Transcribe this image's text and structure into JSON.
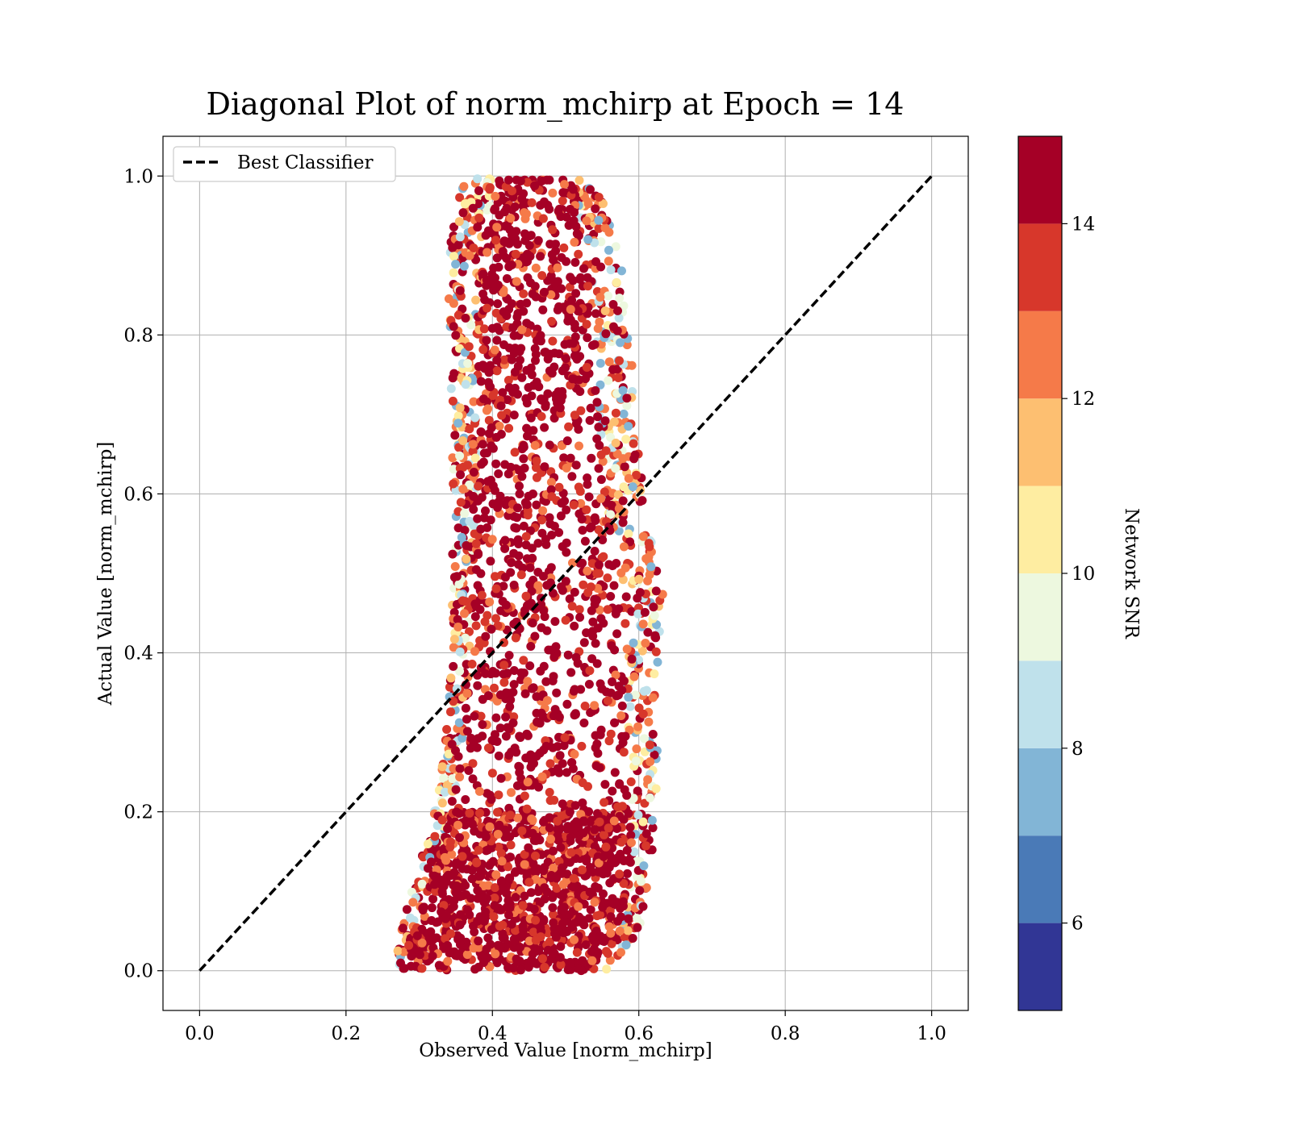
{
  "chart_data": {
    "type": "scatter",
    "title": "Diagonal Plot of norm_mchirp at Epoch = 14",
    "xlabel": "Observed Value [norm_mchirp]",
    "ylabel": "Actual Value [norm_mchirp]",
    "xlim": [
      -0.05,
      1.05
    ],
    "ylim": [
      -0.05,
      1.05
    ],
    "xticks": [
      "0.0",
      "0.2",
      "0.4",
      "0.6",
      "0.8",
      "1.0"
    ],
    "yticks": [
      "0.0",
      "0.2",
      "0.4",
      "0.6",
      "0.8",
      "1.0"
    ],
    "xtick_values": [
      0.0,
      0.2,
      0.4,
      0.6,
      0.8,
      1.0
    ],
    "ytick_values": [
      0.0,
      0.2,
      0.4,
      0.6,
      0.8,
      1.0
    ],
    "grid": true,
    "legend": {
      "placement": "upper-left",
      "entries": [
        "Best Classifier"
      ]
    },
    "reference_line": {
      "name": "Best Classifier",
      "x": [
        0.0,
        1.0
      ],
      "y": [
        0.0,
        1.0
      ],
      "style": "dashed",
      "color": "#000000"
    },
    "colorbar": {
      "label": "Network SNR",
      "range": [
        5,
        15
      ],
      "ticks": [
        "6",
        "8",
        "10",
        "12",
        "14"
      ],
      "tick_values": [
        6,
        8,
        10,
        12,
        14
      ],
      "bins": [
        {
          "from": 5,
          "to": 6,
          "color": "#313695"
        },
        {
          "from": 6,
          "to": 7,
          "color": "#4a7ab7"
        },
        {
          "from": 7,
          "to": 8,
          "color": "#82b5d6"
        },
        {
          "from": 8,
          "to": 9,
          "color": "#bfe1eb"
        },
        {
          "from": 9,
          "to": 10,
          "color": "#edf8df"
        },
        {
          "from": 10,
          "to": 11,
          "color": "#feeda1"
        },
        {
          "from": 11,
          "to": 12,
          "color": "#fdbf71"
        },
        {
          "from": 12,
          "to": 13,
          "color": "#f57a49"
        },
        {
          "from": 13,
          "to": 14,
          "color": "#d7372b"
        },
        {
          "from": 14,
          "to": 15,
          "color": "#a50026"
        }
      ]
    },
    "point_cloud_envelope": [
      {
        "y": 0.0,
        "x_min": 0.265,
        "x_max": 0.555
      },
      {
        "y": 0.05,
        "x_min": 0.275,
        "x_max": 0.6
      },
      {
        "y": 0.1,
        "x_min": 0.29,
        "x_max": 0.615
      },
      {
        "y": 0.15,
        "x_min": 0.305,
        "x_max": 0.62
      },
      {
        "y": 0.2,
        "x_min": 0.32,
        "x_max": 0.625
      },
      {
        "y": 0.25,
        "x_min": 0.33,
        "x_max": 0.625
      },
      {
        "y": 0.3,
        "x_min": 0.335,
        "x_max": 0.625
      },
      {
        "y": 0.35,
        "x_min": 0.34,
        "x_max": 0.625
      },
      {
        "y": 0.4,
        "x_min": 0.345,
        "x_max": 0.63
      },
      {
        "y": 0.45,
        "x_min": 0.345,
        "x_max": 0.64
      },
      {
        "y": 0.5,
        "x_min": 0.345,
        "x_max": 0.625
      },
      {
        "y": 0.6,
        "x_min": 0.345,
        "x_max": 0.605
      },
      {
        "y": 0.7,
        "x_min": 0.345,
        "x_max": 0.6
      },
      {
        "y": 0.8,
        "x_min": 0.34,
        "x_max": 0.585
      },
      {
        "y": 0.9,
        "x_min": 0.34,
        "x_max": 0.575
      },
      {
        "y": 1.0,
        "x_min": 0.36,
        "x_max": 0.54
      }
    ],
    "core_envelope": [
      {
        "y": 0.0,
        "x_min": 0.275,
        "x_max": 0.54
      },
      {
        "y": 0.05,
        "x_min": 0.29,
        "x_max": 0.575
      },
      {
        "y": 0.1,
        "x_min": 0.31,
        "x_max": 0.585
      },
      {
        "y": 0.15,
        "x_min": 0.33,
        "x_max": 0.59
      },
      {
        "y": 0.2,
        "x_min": 0.345,
        "x_max": 0.59
      },
      {
        "y": 0.3,
        "x_min": 0.36,
        "x_max": 0.585
      },
      {
        "y": 0.4,
        "x_min": 0.37,
        "x_max": 0.585
      },
      {
        "y": 0.5,
        "x_min": 0.375,
        "x_max": 0.57
      },
      {
        "y": 0.6,
        "x_min": 0.38,
        "x_max": 0.555
      },
      {
        "y": 0.7,
        "x_min": 0.38,
        "x_max": 0.545
      },
      {
        "y": 0.8,
        "x_min": 0.385,
        "x_max": 0.54
      },
      {
        "y": 0.9,
        "x_min": 0.385,
        "x_max": 0.53
      },
      {
        "y": 0.99,
        "x_min": 0.405,
        "x_max": 0.51
      }
    ]
  }
}
